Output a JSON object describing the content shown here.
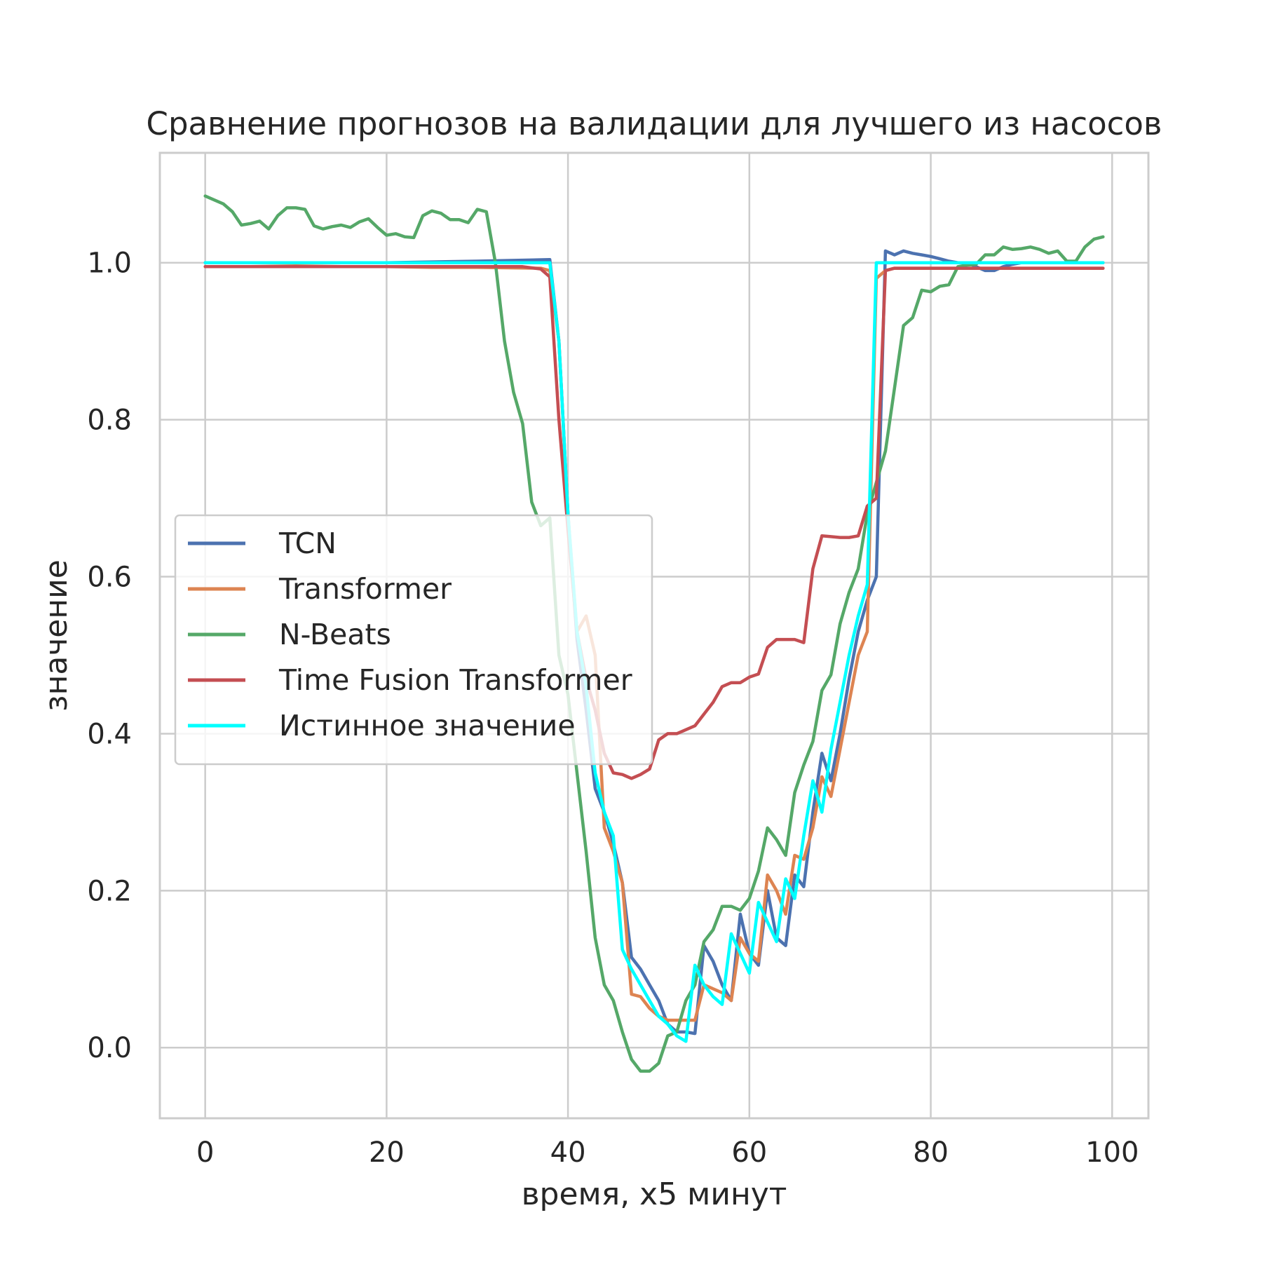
{
  "chart_data": {
    "type": "line",
    "title": "Сравнение прогнозов на валидации для лучшего из насосов",
    "xlabel": "время, x5 минут",
    "ylabel": "значение",
    "xlim": [
      -5,
      104
    ],
    "ylim": [
      -0.09,
      1.14
    ],
    "xticks": [
      0,
      20,
      40,
      60,
      80,
      100
    ],
    "xtick_labels": [
      "0",
      "20",
      "40",
      "60",
      "80",
      "100"
    ],
    "yticks": [
      0.0,
      0.2,
      0.4,
      0.6,
      0.8,
      1.0
    ],
    "ytick_labels": [
      "0.0",
      "0.2",
      "0.4",
      "0.6",
      "0.8",
      "1.0"
    ],
    "grid": true,
    "legend": "center-left",
    "series": [
      {
        "name": "TCN",
        "color": "#4c72b0",
        "x": [
          0,
          10,
          20,
          30,
          38,
          39,
          40,
          41,
          42,
          43,
          44,
          45,
          46,
          47,
          48,
          49,
          50,
          51,
          52,
          53,
          54,
          55,
          56,
          57,
          58,
          59,
          60,
          61,
          62,
          63,
          64,
          65,
          66,
          67,
          68,
          69,
          70,
          71,
          72,
          73,
          74,
          75,
          76,
          77,
          78,
          79,
          80,
          81,
          82,
          83,
          84,
          85,
          86,
          87,
          88,
          89,
          90,
          91,
          92,
          93,
          94,
          95,
          96,
          97,
          98,
          99
        ],
        "y": [
          1.0,
          1.0,
          1.0,
          1.002,
          1.004,
          0.9,
          0.68,
          0.52,
          0.43,
          0.33,
          0.3,
          0.26,
          0.21,
          0.115,
          0.1,
          0.08,
          0.06,
          0.03,
          0.02,
          0.02,
          0.018,
          0.13,
          0.11,
          0.08,
          0.06,
          0.17,
          0.12,
          0.105,
          0.2,
          0.14,
          0.13,
          0.22,
          0.205,
          0.3,
          0.375,
          0.34,
          0.4,
          0.47,
          0.53,
          0.57,
          0.6,
          1.015,
          1.01,
          1.015,
          1.012,
          1.01,
          1.008,
          1.005,
          1.002,
          1.0,
          1.0,
          0.995,
          0.99,
          0.99,
          0.995,
          0.998,
          1.0,
          1.0,
          1.0,
          1.0,
          1.0,
          1.0,
          1.0,
          1.0,
          1.0,
          1.0
        ]
      },
      {
        "name": "Transformer",
        "color": "#dd8452",
        "x": [
          0,
          5,
          10,
          15,
          20,
          25,
          30,
          37,
          38,
          39,
          40,
          41,
          42,
          43,
          44,
          45,
          46,
          47,
          48,
          49,
          50,
          51,
          52,
          53,
          54,
          55,
          56,
          57,
          58,
          59,
          60,
          61,
          62,
          63,
          64,
          65,
          66,
          67,
          68,
          69,
          70,
          71,
          72,
          73,
          74,
          75,
          76,
          80,
          85,
          90,
          95,
          99
        ],
        "y": [
          0.995,
          0.995,
          0.996,
          0.995,
          0.995,
          0.994,
          0.994,
          0.993,
          0.99,
          0.9,
          0.68,
          0.53,
          0.55,
          0.5,
          0.28,
          0.25,
          0.21,
          0.068,
          0.065,
          0.05,
          0.04,
          0.035,
          0.035,
          0.035,
          0.035,
          0.08,
          0.075,
          0.07,
          0.06,
          0.14,
          0.12,
          0.11,
          0.22,
          0.2,
          0.17,
          0.245,
          0.24,
          0.28,
          0.345,
          0.32,
          0.38,
          0.44,
          0.5,
          0.53,
          0.98,
          0.99,
          0.993,
          0.993,
          0.993,
          0.993,
          0.993,
          0.993
        ]
      },
      {
        "name": "N-Beats",
        "color": "#55a868",
        "x": [
          0,
          1,
          2,
          3,
          4,
          5,
          6,
          7,
          8,
          9,
          10,
          11,
          12,
          13,
          14,
          15,
          16,
          17,
          18,
          19,
          20,
          21,
          22,
          23,
          24,
          25,
          26,
          27,
          28,
          29,
          30,
          31,
          32,
          33,
          34,
          35,
          36,
          37,
          38,
          39,
          40,
          41,
          42,
          43,
          44,
          45,
          46,
          47,
          48,
          49,
          50,
          51,
          52,
          53,
          54,
          55,
          56,
          57,
          58,
          59,
          60,
          61,
          62,
          63,
          64,
          65,
          66,
          67,
          68,
          69,
          70,
          71,
          72,
          73,
          74,
          75,
          76,
          77,
          78,
          79,
          80,
          81,
          82,
          83,
          84,
          85,
          86,
          87,
          88,
          89,
          90,
          91,
          92,
          93,
          94,
          95,
          96,
          97,
          98,
          99
        ],
        "y": [
          1.085,
          1.08,
          1.075,
          1.065,
          1.048,
          1.05,
          1.053,
          1.043,
          1.06,
          1.07,
          1.07,
          1.068,
          1.047,
          1.043,
          1.046,
          1.048,
          1.045,
          1.052,
          1.056,
          1.045,
          1.035,
          1.037,
          1.033,
          1.032,
          1.06,
          1.066,
          1.063,
          1.055,
          1.055,
          1.051,
          1.068,
          1.065,
          1.0,
          0.9,
          0.835,
          0.795,
          0.695,
          0.665,
          0.675,
          0.5,
          0.45,
          0.35,
          0.25,
          0.14,
          0.08,
          0.06,
          0.02,
          -0.015,
          -0.03,
          -0.03,
          -0.02,
          0.015,
          0.02,
          0.06,
          0.08,
          0.135,
          0.15,
          0.18,
          0.18,
          0.175,
          0.19,
          0.225,
          0.28,
          0.265,
          0.245,
          0.325,
          0.36,
          0.39,
          0.455,
          0.475,
          0.54,
          0.58,
          0.61,
          0.68,
          0.72,
          0.76,
          0.84,
          0.92,
          0.93,
          0.965,
          0.963,
          0.97,
          0.972,
          0.995,
          0.997,
          0.998,
          1.01,
          1.01,
          1.02,
          1.017,
          1.018,
          1.02,
          1.017,
          1.012,
          1.015,
          1.002,
          1.002,
          1.02,
          1.03,
          1.033
        ]
      },
      {
        "name": "Time Fusion Transformer",
        "color": "#c44e52",
        "x": [
          0,
          10,
          20,
          30,
          35,
          37,
          38,
          39,
          40,
          41,
          42,
          43,
          44,
          45,
          46,
          47,
          48,
          49,
          50,
          51,
          52,
          53,
          54,
          55,
          56,
          57,
          58,
          59,
          60,
          61,
          62,
          63,
          64,
          65,
          66,
          67,
          68,
          69,
          70,
          71,
          72,
          73,
          74,
          75,
          76,
          80,
          85,
          90,
          95,
          99
        ],
        "y": [
          0.995,
          0.995,
          0.995,
          0.995,
          0.995,
          0.992,
          0.982,
          0.8,
          0.66,
          0.53,
          0.47,
          0.43,
          0.375,
          0.35,
          0.348,
          0.343,
          0.348,
          0.355,
          0.392,
          0.4,
          0.4,
          0.405,
          0.41,
          0.425,
          0.44,
          0.46,
          0.465,
          0.465,
          0.472,
          0.476,
          0.51,
          0.52,
          0.52,
          0.52,
          0.516,
          0.61,
          0.652,
          0.651,
          0.65,
          0.65,
          0.652,
          0.69,
          0.7,
          0.99,
          0.993,
          0.993,
          0.993,
          0.993,
          0.993,
          0.993
        ]
      },
      {
        "name": "Истинное значение",
        "color": "#00ffff",
        "x": [
          0,
          38,
          39,
          40,
          41,
          42,
          43,
          44,
          45,
          46,
          47,
          48,
          49,
          50,
          51,
          52,
          53,
          54,
          55,
          56,
          57,
          58,
          59,
          60,
          61,
          62,
          63,
          64,
          65,
          66,
          67,
          68,
          69,
          70,
          71,
          72,
          73,
          74,
          75,
          99
        ],
        "y": [
          1.0,
          1.0,
          0.9,
          0.68,
          0.53,
          0.46,
          0.35,
          0.3,
          0.27,
          0.125,
          0.1,
          0.08,
          0.06,
          0.04,
          0.03,
          0.015,
          0.008,
          0.105,
          0.08,
          0.065,
          0.055,
          0.145,
          0.12,
          0.095,
          0.185,
          0.16,
          0.135,
          0.215,
          0.19,
          0.27,
          0.34,
          0.3,
          0.38,
          0.44,
          0.5,
          0.55,
          0.59,
          1.0,
          1.0,
          1.0
        ]
      }
    ]
  }
}
